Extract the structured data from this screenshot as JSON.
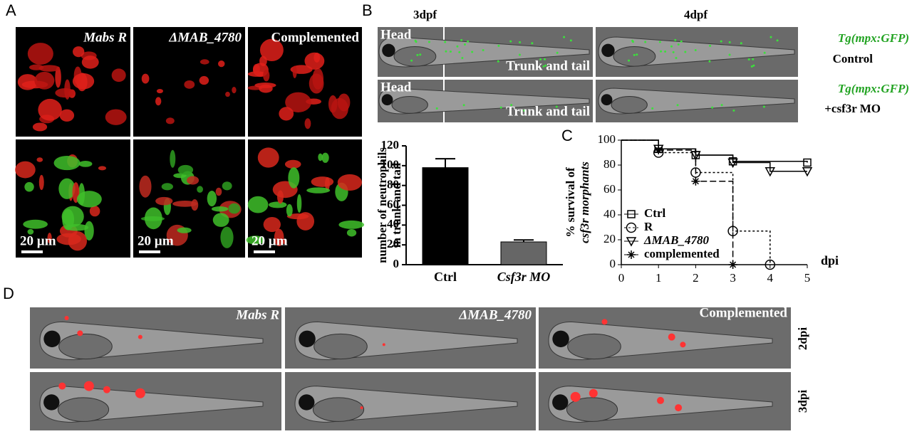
{
  "panels": {
    "A": {
      "label": "A",
      "columns": [
        "Mabs R",
        "ΔMAB_4780",
        "Complemented"
      ],
      "scale_bar": "20 µm"
    },
    "B": {
      "label": "B",
      "columns": [
        "3dpf",
        "4dpf"
      ],
      "head": "Head",
      "trunk": "Trunk and tail",
      "rows": [
        {
          "line": "Tg(mpx:GFP)",
          "condition": "Control"
        },
        {
          "line": "Tg(mpx:GFP)",
          "condition": "+csf3r MO"
        }
      ]
    },
    "C": {
      "label": "C"
    },
    "D": {
      "label": "D",
      "columns": [
        "Mabs R",
        "ΔMAB_4780",
        "Complemented"
      ],
      "rows": [
        "2dpi",
        "3dpi"
      ]
    }
  },
  "chart_data": [
    {
      "type": "bar",
      "ylabel": [
        "number of neutrophils",
        "in trunk and tail"
      ],
      "categories": [
        "Ctrl",
        "Csf3r MO"
      ],
      "values": [
        98,
        23
      ],
      "errors": [
        9,
        2
      ],
      "colors": [
        "#000000",
        "#666666"
      ],
      "ylim": [
        0,
        120
      ],
      "yticks": [
        0,
        20,
        40,
        60,
        80,
        100,
        120
      ]
    },
    {
      "type": "line",
      "ylabel": [
        "% survival of",
        "csf3r morphants"
      ],
      "xlabel": "dpi",
      "color": "#000000",
      "legend": "bottom-left",
      "xlim": [
        0,
        5
      ],
      "xticks": [
        0,
        1,
        2,
        3,
        4,
        5
      ],
      "ylim": [
        0,
        100
      ],
      "yticks": [
        0,
        20,
        40,
        60,
        80,
        100
      ],
      "series": [
        {
          "name": "Ctrl",
          "marker": "square",
          "dash": "solid",
          "x": [
            0,
            1,
            2,
            3,
            5
          ],
          "values": [
            100,
            93,
            88,
            83,
            82
          ]
        },
        {
          "name": "R",
          "marker": "circle",
          "dash": "dotted",
          "x": [
            0,
            1,
            2,
            3,
            4
          ],
          "values": [
            100,
            90,
            74,
            27,
            0
          ]
        },
        {
          "name": "ΔMAB_4780",
          "marker": "triangle",
          "dash": "solid",
          "x": [
            0,
            1,
            2,
            3,
            4,
            5
          ],
          "values": [
            100,
            93,
            88,
            82,
            75,
            75
          ]
        },
        {
          "name": "complemented",
          "marker": "star",
          "dash": "dashed",
          "x": [
            0,
            1,
            2,
            3
          ],
          "values": [
            100,
            92,
            67,
            0
          ]
        }
      ]
    }
  ]
}
